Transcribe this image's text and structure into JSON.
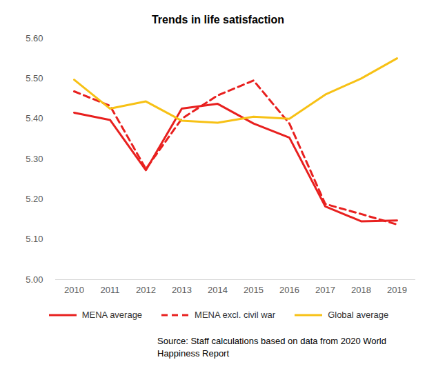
{
  "chart_data": {
    "type": "line",
    "title": "Trends in life satisfaction",
    "source": "Source: Staff calculations based on data from 2020 World Happiness Report",
    "categories": [
      "2010",
      "2011",
      "2012",
      "2013",
      "2014",
      "2015",
      "2016",
      "2017",
      "2018",
      "2019"
    ],
    "series": [
      {
        "name": "MENA average",
        "color": "#e8201f",
        "line_style": "solid",
        "values": [
          5.415,
          5.397,
          5.272,
          5.425,
          5.437,
          5.388,
          5.353,
          5.182,
          5.145,
          5.147
        ]
      },
      {
        "name": "MENA excl. civil war",
        "color": "#e8201f",
        "line_style": "dashed",
        "values": [
          5.468,
          5.432,
          5.275,
          5.4,
          5.458,
          5.495,
          5.388,
          5.188,
          5.163,
          5.137
        ]
      },
      {
        "name": "Global average",
        "color": "#f7c115",
        "line_style": "solid",
        "values": [
          5.497,
          5.425,
          5.443,
          5.395,
          5.39,
          5.405,
          5.4,
          5.46,
          5.5,
          5.55
        ]
      }
    ],
    "ylim": [
      5.0,
      5.6
    ],
    "yticks": [
      {
        "value": 5.0,
        "label": "5.00"
      },
      {
        "value": 5.1,
        "label": "5.10"
      },
      {
        "value": 5.2,
        "label": "5.20"
      },
      {
        "value": 5.3,
        "label": "5.30"
      },
      {
        "value": 5.4,
        "label": "5.40"
      },
      {
        "value": 5.5,
        "label": "5.50"
      },
      {
        "value": 5.6,
        "label": "5.60"
      }
    ],
    "grid": false,
    "legend": "bottom"
  }
}
